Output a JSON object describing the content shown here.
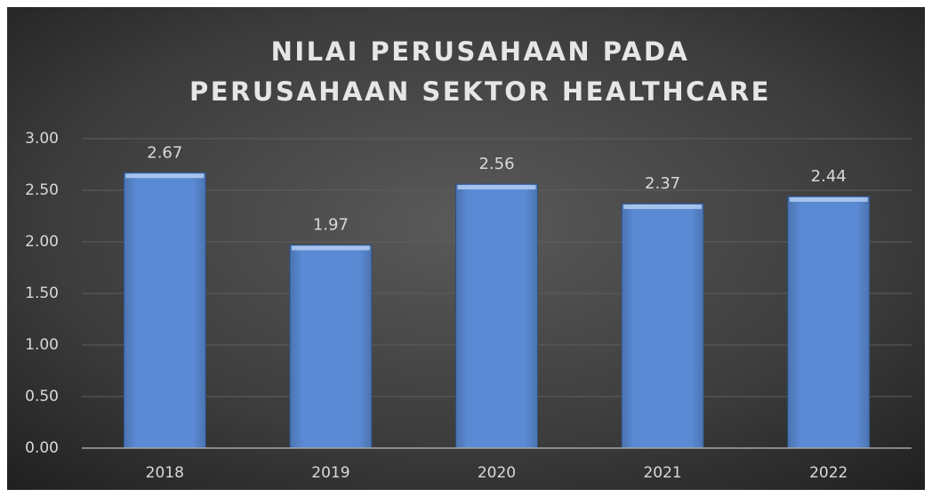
{
  "chart_data": {
    "type": "bar",
    "title": [
      "NILAI PERUSAHAAN PADA",
      "PERUSAHAAN SEKTOR HEALTHCARE"
    ],
    "categories": [
      "2018",
      "2019",
      "2020",
      "2021",
      "2022"
    ],
    "values": [
      2.67,
      1.97,
      2.56,
      2.37,
      2.44
    ],
    "color": "#5a8ad3",
    "ylim": [
      0,
      3
    ],
    "yticks": [
      {
        "value": 0,
        "label": "0.00"
      },
      {
        "value": 0.5,
        "label": "0.50"
      },
      {
        "value": 1,
        "label": "1.00"
      },
      {
        "value": 1.5,
        "label": "1.50"
      },
      {
        "value": 2,
        "label": "2.00"
      },
      {
        "value": 2.5,
        "label": "2.50"
      },
      {
        "value": 3,
        "label": "3.00"
      }
    ],
    "grid": true
  }
}
